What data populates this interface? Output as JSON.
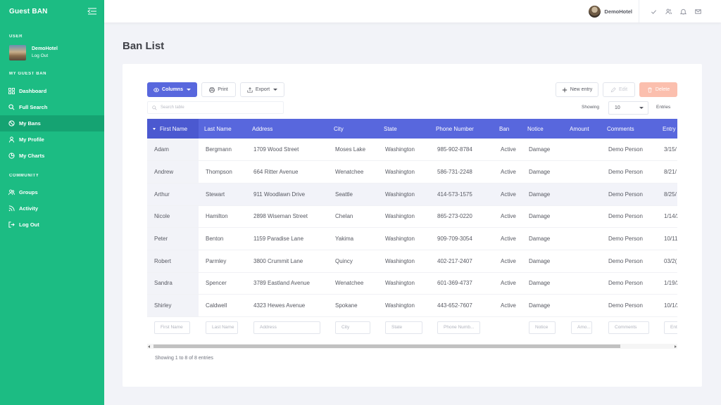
{
  "app": {
    "brand": "Guest BAN"
  },
  "sidebar": {
    "user_section": "USER",
    "user_name": "DemoHotel",
    "logout_label": "Log Out",
    "main_section": "MY GUEST BAN",
    "items": [
      {
        "label": "Dashboard",
        "icon": "grid-icon"
      },
      {
        "label": "Full Search",
        "icon": "search-icon"
      },
      {
        "label": "My Bans",
        "icon": "ban-icon",
        "active": true
      },
      {
        "label": "My Profile",
        "icon": "user-icon"
      },
      {
        "label": "My Charts",
        "icon": "pie-chart-icon"
      }
    ],
    "community_section": "COMMUNITY",
    "community_items": [
      {
        "label": "Groups",
        "icon": "users-icon"
      },
      {
        "label": "Activity",
        "icon": "rss-icon"
      },
      {
        "label": "Log Out",
        "icon": "logout-icon"
      }
    ]
  },
  "topbar": {
    "user_name": "DemoHotel",
    "icons": [
      "check-icon",
      "users-icon",
      "bell-icon",
      "mail-icon"
    ]
  },
  "page": {
    "title": "Ban List"
  },
  "toolbar": {
    "columns_label": "Columns",
    "print_label": "Print",
    "export_label": "Export",
    "new_label": "New entry",
    "edit_label": "Edit",
    "delete_label": "Delete",
    "search_placeholder": "Search table",
    "showing_label": "Showing",
    "entries_value": "10",
    "entries_label": "Entries"
  },
  "table": {
    "headers": [
      "First Name",
      "Last Name",
      "Address",
      "City",
      "State",
      "Phone Number",
      "Ban",
      "Notice",
      "Amount",
      "Comments",
      "Entry"
    ],
    "rows": [
      [
        "Adam",
        "Bergmann",
        "1709 Wood Street",
        "Moses Lake",
        "Washington",
        "985-902-8784",
        "Active",
        "Damage",
        "",
        "Demo Person",
        "3/15/"
      ],
      [
        "Andrew",
        "Thompson",
        "664 Ritter Avenue",
        "Wenatchee",
        "Washington",
        "586-731-2248",
        "Active",
        "Damage",
        "",
        "Demo Person",
        "8/21/"
      ],
      [
        "Arthur",
        "Stewart",
        "911 Woodlawn Drive",
        "Seattle",
        "Washington",
        "414-573-1575",
        "Active",
        "Damage",
        "",
        "Demo Person",
        "8/25/"
      ],
      [
        "Nicole",
        "Hamilton",
        "2898 Wiseman Street",
        "Chelan",
        "Washington",
        "865-273-0220",
        "Active",
        "Damage",
        "",
        "Demo Person",
        "1/14/2"
      ],
      [
        "Peter",
        "Benton",
        "1159 Paradise Lane",
        "Yakima",
        "Washington",
        "909-709-3054",
        "Active",
        "Damage",
        "",
        "Demo Person",
        "10/11/"
      ],
      [
        "Robert",
        "Parmley",
        "3800 Crummit Lane",
        "Quincy",
        "Washington",
        "402-217-2407",
        "Active",
        "Damage",
        "",
        "Demo Person",
        "03/2("
      ],
      [
        "Sandra",
        "Spencer",
        "3789 Eastland Avenue",
        "Wenatchee",
        "Washington",
        "601-369-4737",
        "Active",
        "Damage",
        "",
        "Demo Person",
        "1/19/2"
      ],
      [
        "Shirley",
        "Caldwell",
        "4323 Hewes Avenue",
        "Spokane",
        "Washington",
        "443-652-7607",
        "Active",
        "Damage",
        "",
        "Demo Person",
        "10/1/2"
      ]
    ],
    "highlight_row": 2,
    "filters": [
      "First Name",
      "Last Name",
      "Address",
      "City",
      "State",
      "Phone Numb...",
      "",
      "Notice",
      "Amo...",
      "Comments",
      "Entr"
    ]
  },
  "footer": {
    "info": "Showing 1 to 8 of 8 entries"
  },
  "colors": {
    "sidebar": "#1cbc83",
    "primary": "#5867dd",
    "danger_light": "#fbbfae"
  }
}
